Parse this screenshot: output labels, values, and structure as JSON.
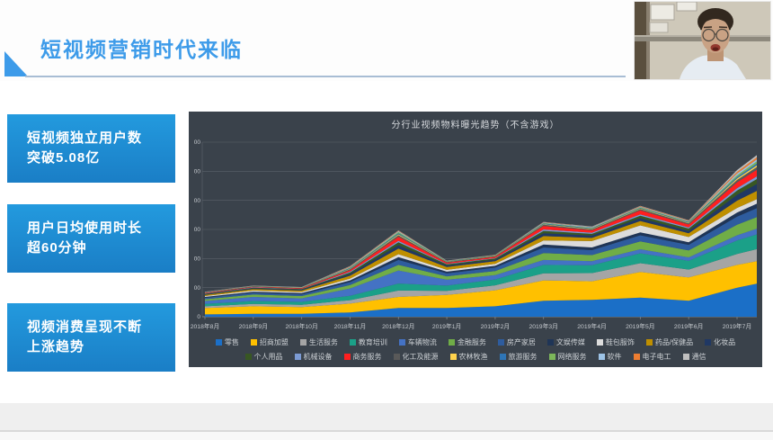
{
  "header": {
    "title": "短视频营销时代来临"
  },
  "bullets": [
    {
      "line1": "短视频独立用户数",
      "line2": "突破5.08亿"
    },
    {
      "line1": "用户日均使用时长",
      "line2": "超60分钟"
    },
    {
      "line1": "视频消费呈现不断",
      "line2": "上涨趋势"
    }
  ],
  "colors": {
    "title_blue": "#3d9be9",
    "box_blue_top": "#239ade",
    "box_blue_bottom": "#1a7ec6",
    "panel_bg": "#3a424b",
    "gridline": "#5a6169",
    "axis_text": "#c5c9ce"
  },
  "chart_data": {
    "type": "area",
    "stacked": true,
    "title": "分行业视频物料曝光趋势（不含游戏）",
    "grid": true,
    "legend_position": "bottom",
    "background": "#3a424b",
    "y_axis": {
      "min": 0,
      "ticks_visible": [
        "0",
        "00",
        "00",
        "00",
        "00",
        "00",
        "00"
      ],
      "note_labels_clipped": true
    },
    "categories": [
      "2018年8月",
      "2018年9月",
      "2018年10月",
      "2018年11月",
      "2018年12月",
      "2019年1月",
      "2019年2月",
      "2019年3月",
      "2019年4月",
      "2019年5月",
      "2019年6月",
      "2019年7月"
    ],
    "series": [
      {
        "name": "零售",
        "color": "#1b6fc7",
        "values": [
          8,
          10,
          10,
          15,
          30,
          30,
          36,
          55,
          58,
          66,
          55,
          100
        ]
      },
      {
        "name": "招商加盟",
        "color": "#ffc000",
        "values": [
          22,
          26,
          23,
          30,
          38,
          45,
          55,
          70,
          64,
          88,
          80,
          78
        ]
      },
      {
        "name": "生活服务",
        "color": "#a5a5a5",
        "values": [
          6,
          8,
          8,
          12,
          22,
          14,
          17,
          24,
          28,
          30,
          27,
          38
        ]
      },
      {
        "name": "教育培训",
        "color": "#1ba088",
        "values": [
          8,
          10,
          10,
          15,
          24,
          18,
          20,
          29,
          27,
          34,
          30,
          46
        ]
      },
      {
        "name": "车辆物流",
        "color": "#4472c4",
        "values": [
          10,
          14,
          12,
          25,
          45,
          20,
          15,
          17,
          14,
          14,
          12,
          18
        ]
      },
      {
        "name": "金融服务",
        "color": "#70ad47",
        "values": [
          6,
          8,
          8,
          12,
          19,
          12,
          14,
          24,
          21,
          27,
          24,
          36
        ]
      },
      {
        "name": "房产家居",
        "color": "#2e5c9e",
        "values": [
          5,
          6,
          6,
          10,
          17,
          10,
          12,
          19,
          17,
          21,
          19,
          28
        ]
      },
      {
        "name": "文娱传媒",
        "color": "#1f3557",
        "values": [
          3,
          4,
          4,
          6,
          10,
          6,
          6,
          10,
          9,
          10,
          9,
          14
        ]
      },
      {
        "name": "鞋包服饰",
        "color": "#dcdcdc",
        "values": [
          3,
          4,
          4,
          6,
          10,
          6,
          7,
          14,
          22,
          24,
          18,
          16
        ]
      },
      {
        "name": "药品/保健品",
        "color": "#bf8f00",
        "values": [
          4,
          5,
          5,
          10,
          19,
          10,
          9,
          15,
          11,
          15,
          13,
          25
        ]
      },
      {
        "name": "化妆品",
        "color": "#203864",
        "values": [
          2,
          3,
          3,
          6,
          12,
          5,
          5,
          10,
          8,
          10,
          8,
          20
        ]
      },
      {
        "name": "个人用品",
        "color": "#385723",
        "values": [
          2,
          2,
          2,
          5,
          10,
          4,
          4,
          8,
          6,
          8,
          8,
          15
        ]
      },
      {
        "name": "机械设备",
        "color": "#7c9bd4",
        "values": [
          1,
          1,
          1,
          3,
          5,
          2,
          2,
          5,
          4,
          5,
          4,
          8
        ]
      },
      {
        "name": "商务服务",
        "color": "#ff1f1f",
        "values": [
          2,
          2,
          2,
          5,
          14,
          4,
          4,
          12,
          8,
          14,
          10,
          20
        ]
      },
      {
        "name": "化工及能源",
        "color": "#595959",
        "values": [
          1,
          1,
          1,
          3,
          5,
          2,
          2,
          4,
          3,
          4,
          4,
          8
        ]
      },
      {
        "name": "农林牧渔",
        "color": "#ffd34d",
        "values": [
          0.5,
          0.5,
          0.5,
          2,
          3,
          1,
          1,
          2,
          2,
          2,
          2,
          5
        ]
      },
      {
        "name": "旅游服务",
        "color": "#2e75b6",
        "values": [
          0.5,
          0.5,
          0.5,
          2,
          4,
          1,
          1,
          2,
          2,
          2,
          2,
          5
        ]
      },
      {
        "name": "网络服务",
        "color": "#7cb65a",
        "values": [
          0.5,
          0.5,
          0.5,
          2,
          4,
          1,
          1,
          2,
          2,
          2,
          2,
          6
        ]
      },
      {
        "name": "软件",
        "color": "#9dc3e6",
        "values": [
          0.5,
          0.5,
          0.5,
          2,
          3,
          1,
          1,
          2,
          2,
          2,
          2,
          6
        ]
      },
      {
        "name": "电子电工",
        "color": "#ed7d31",
        "values": [
          0.5,
          0.5,
          0.5,
          2,
          2,
          0.5,
          0.5,
          1,
          1,
          2,
          2,
          6
        ]
      },
      {
        "name": "通信",
        "color": "#bfbfbf",
        "values": [
          0.5,
          0.5,
          0.5,
          1,
          1,
          0.5,
          0.5,
          1,
          1,
          1,
          1,
          6
        ]
      }
    ]
  }
}
